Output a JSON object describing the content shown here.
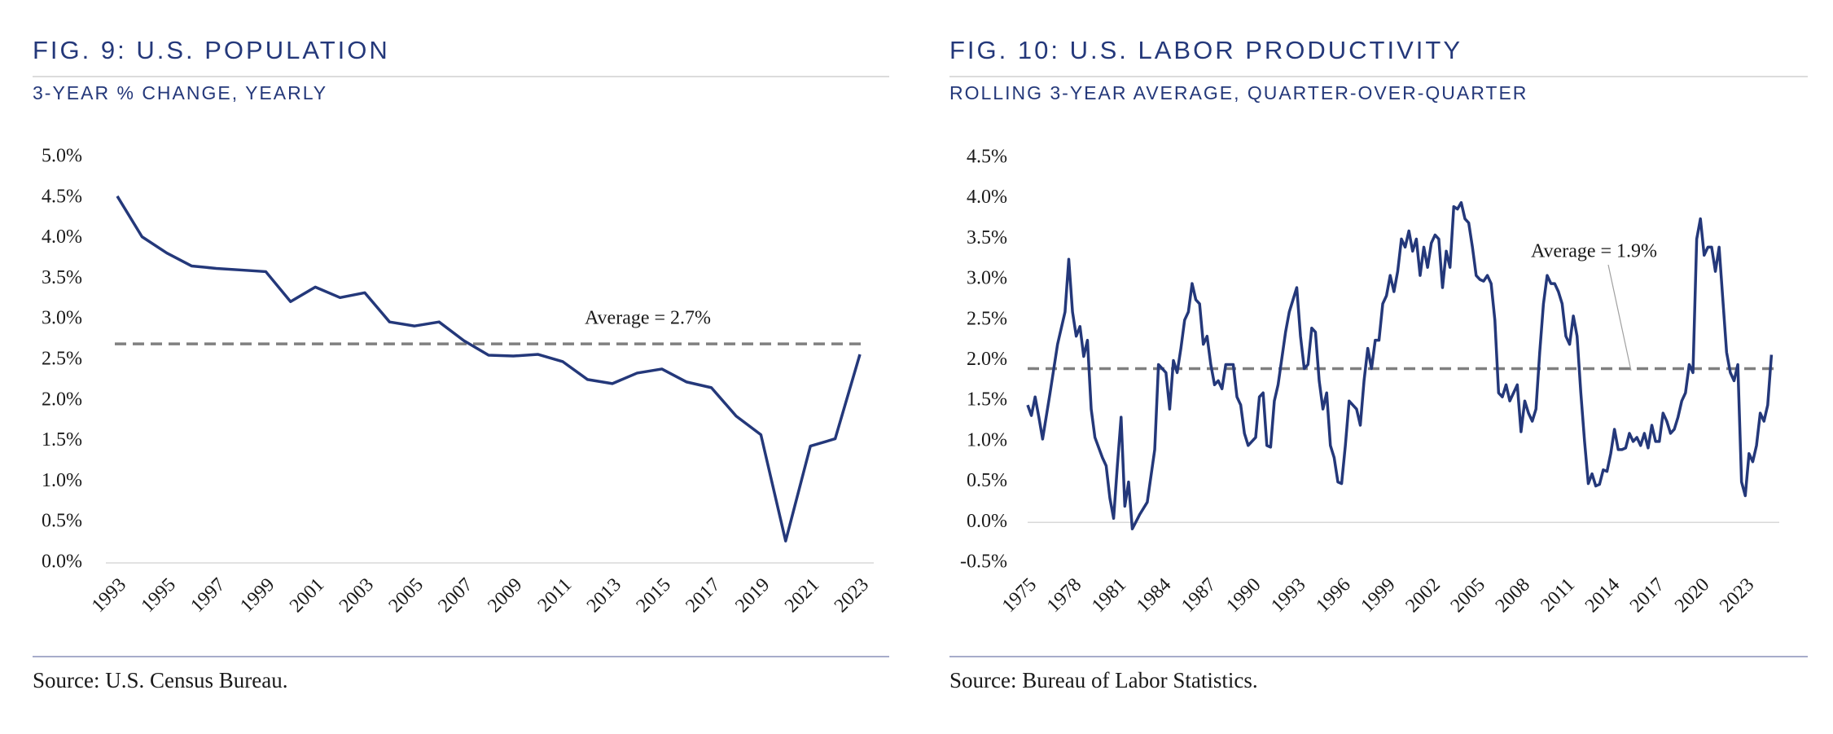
{
  "chart_data": [
    {
      "type": "line",
      "title": "FIG. 9: U.S. POPULATION",
      "subtitle": "3-YEAR % CHANGE, YEARLY",
      "source": "Source: U.S. Census Bureau.",
      "color": "#24387a",
      "x": [
        1993,
        1994,
        1995,
        1996,
        1997,
        1998,
        1999,
        2000,
        2001,
        2002,
        2003,
        2004,
        2005,
        2006,
        2007,
        2008,
        2009,
        2010,
        2011,
        2012,
        2013,
        2014,
        2015,
        2016,
        2017,
        2018,
        2019,
        2020,
        2021,
        2022,
        2023
      ],
      "values": [
        4.52,
        4.02,
        3.82,
        3.66,
        3.63,
        3.61,
        3.59,
        3.22,
        3.4,
        3.27,
        3.33,
        2.97,
        2.92,
        2.97,
        2.74,
        2.56,
        2.55,
        2.57,
        2.48,
        2.26,
        2.21,
        2.34,
        2.39,
        2.23,
        2.16,
        1.81,
        1.58,
        0.27,
        1.44,
        1.53,
        2.57
      ],
      "xlim": [
        1993,
        2023
      ],
      "xticks": [
        1993,
        1995,
        1997,
        1999,
        2001,
        2003,
        2005,
        2007,
        2009,
        2011,
        2013,
        2015,
        2017,
        2019,
        2021,
        2023
      ],
      "ylim": [
        0,
        5
      ],
      "yticks": [
        {
          "value": 0,
          "label": "0.0%"
        },
        {
          "value": 0.5,
          "label": "0.5%"
        },
        {
          "value": 1,
          "label": "1.0%"
        },
        {
          "value": 1.5,
          "label": "1.5%"
        },
        {
          "value": 2,
          "label": "2.0%"
        },
        {
          "value": 2.5,
          "label": "2.5%"
        },
        {
          "value": 3,
          "label": "3.0%"
        },
        {
          "value": 3.5,
          "label": "3.5%"
        },
        {
          "value": 4,
          "label": "4.0%"
        },
        {
          "value": 4.5,
          "label": "4.5%"
        },
        {
          "value": 5,
          "label": "5.0%"
        }
      ],
      "average": {
        "value": 2.7,
        "label": "Average = 2.7%"
      }
    },
    {
      "type": "line",
      "title": "FIG. 10: U.S. LABOR PRODUCTIVITY",
      "subtitle": "ROLLING 3-YEAR AVERAGE, QUARTER-OVER-QUARTER",
      "source": "Source: Bureau of Labor Statistics.",
      "color": "#24387a",
      "x": [
        1975,
        1975.25,
        1975.5,
        1975.75,
        1976,
        1976.5,
        1977,
        1977.5,
        1977.75,
        1978,
        1978.25,
        1978.5,
        1978.75,
        1979,
        1979.25,
        1979.5,
        1980,
        1980.25,
        1980.5,
        1980.75,
        1981,
        1981.25,
        1981.5,
        1981.75,
        1982,
        1982.5,
        1983,
        1983.5,
        1983.75,
        1984.25,
        1984.5,
        1984.75,
        1985,
        1985.25,
        1985.5,
        1985.75,
        1986,
        1986.25,
        1986.5,
        1986.75,
        1987,
        1987.25,
        1987.5,
        1987.75,
        1988,
        1988.25,
        1988.75,
        1989,
        1989.25,
        1989.5,
        1989.75,
        1990.25,
        1990.5,
        1990.75,
        1991,
        1991.25,
        1991.5,
        1991.75,
        1992.25,
        1992.5,
        1992.75,
        1993,
        1993.25,
        1993.5,
        1993.75,
        1994,
        1994.25,
        1994.5,
        1994.75,
        1995,
        1995.25,
        1995.5,
        1995.75,
        1996,
        1996.25,
        1996.5,
        1996.75,
        1997,
        1997.25,
        1997.5,
        1997.75,
        1998,
        1998.25,
        1998.5,
        1998.75,
        1999,
        1999.25,
        1999.5,
        1999.75,
        2000,
        2000.25,
        2000.5,
        2000.75,
        2001,
        2001.25,
        2001.5,
        2001.75,
        2002,
        2002.25,
        2002.5,
        2002.75,
        2003,
        2003.25,
        2003.5,
        2003.75,
        2004,
        2004.25,
        2004.5,
        2004.75,
        2005,
        2005.25,
        2005.5,
        2005.75,
        2006,
        2006.25,
        2006.5,
        2006.75,
        2007,
        2007.25,
        2007.5,
        2007.75,
        2008,
        2008.25,
        2008.5,
        2008.75,
        2009,
        2009.25,
        2009.5,
        2009.75,
        2010,
        2010.25,
        2010.5,
        2010.75,
        2011,
        2011.25,
        2011.5,
        2011.75,
        2012,
        2012.25,
        2012.5,
        2012.75,
        2013,
        2013.25,
        2013.5,
        2013.75,
        2014,
        2014.25,
        2014.5,
        2014.75,
        2015,
        2015.25,
        2015.5,
        2015.75,
        2016,
        2016.25,
        2016.5,
        2016.75,
        2017,
        2017.25,
        2017.5,
        2017.75,
        2018,
        2018.25,
        2018.5,
        2018.75,
        2019,
        2019.25,
        2019.5,
        2019.75,
        2020,
        2020.25,
        2020.5,
        2020.75,
        2021,
        2021.25,
        2021.5,
        2021.75,
        2022,
        2022.25,
        2022.5,
        2022.75,
        2023,
        2023.25,
        2023.5,
        2023.75,
        2024,
        2024.25,
        2024.5,
        2024.75
      ],
      "values": [
        1.45,
        1.32,
        1.55,
        1.3,
        1.03,
        1.6,
        2.2,
        2.6,
        3.25,
        2.6,
        2.3,
        2.42,
        2.05,
        2.25,
        1.4,
        1.05,
        0.8,
        0.7,
        0.3,
        0.05,
        0.7,
        1.3,
        0.2,
        0.5,
        -0.08,
        0.1,
        0.25,
        0.9,
        1.95,
        1.85,
        1.4,
        2.0,
        1.85,
        2.15,
        2.5,
        2.6,
        2.95,
        2.75,
        2.7,
        2.2,
        2.3,
        1.95,
        1.7,
        1.75,
        1.65,
        1.95,
        1.95,
        1.55,
        1.45,
        1.1,
        0.95,
        1.05,
        1.55,
        1.6,
        0.95,
        0.93,
        1.5,
        1.7,
        2.35,
        2.6,
        2.75,
        2.9,
        2.3,
        1.9,
        1.95,
        2.4,
        2.35,
        1.75,
        1.4,
        1.6,
        0.95,
        0.8,
        0.5,
        0.48,
        0.95,
        1.5,
        1.45,
        1.4,
        1.2,
        1.75,
        2.15,
        1.9,
        2.25,
        2.25,
        2.7,
        2.8,
        3.05,
        2.85,
        3.1,
        3.5,
        3.4,
        3.6,
        3.35,
        3.5,
        3.05,
        3.4,
        3.15,
        3.45,
        3.55,
        3.5,
        2.9,
        3.35,
        3.15,
        3.9,
        3.87,
        3.95,
        3.75,
        3.7,
        3.4,
        3.05,
        3.0,
        2.98,
        3.05,
        2.95,
        2.5,
        1.6,
        1.55,
        1.7,
        1.5,
        1.6,
        1.7,
        1.12,
        1.5,
        1.35,
        1.25,
        1.4,
        2.1,
        2.7,
        3.05,
        2.95,
        2.95,
        2.85,
        2.7,
        2.3,
        2.2,
        2.55,
        2.3,
        1.6,
        1.0,
        0.48,
        0.6,
        0.45,
        0.47,
        0.65,
        0.63,
        0.85,
        1.15,
        0.9,
        0.9,
        0.92,
        1.1,
        1.0,
        1.05,
        0.95,
        1.1,
        0.92,
        1.2,
        1.0,
        1.0,
        1.35,
        1.25,
        1.1,
        1.15,
        1.3,
        1.5,
        1.6,
        1.95,
        1.85,
        3.5,
        3.75,
        3.3,
        3.4,
        3.4,
        3.1,
        3.4,
        2.75,
        2.1,
        1.85,
        1.75,
        1.95,
        0.5,
        0.33,
        0.85,
        0.75,
        0.95,
        1.35,
        1.25,
        1.45,
        2.07
      ],
      "xlim": [
        1975,
        2025
      ],
      "xticks": [
        1975,
        1978,
        1981,
        1984,
        1987,
        1990,
        1993,
        1996,
        1999,
        2002,
        2005,
        2008,
        2011,
        2014,
        2017,
        2020,
        2023
      ],
      "ylim": [
        -0.5,
        4.5
      ],
      "yticks": [
        {
          "value": -0.5,
          "label": "-0.5%"
        },
        {
          "value": 0,
          "label": "0.0%"
        },
        {
          "value": 0.5,
          "label": "0.5%"
        },
        {
          "value": 1,
          "label": "1.0%"
        },
        {
          "value": 1.5,
          "label": "1.5%"
        },
        {
          "value": 2,
          "label": "2.0%"
        },
        {
          "value": 2.5,
          "label": "2.5%"
        },
        {
          "value": 3,
          "label": "3.0%"
        },
        {
          "value": 3.5,
          "label": "3.5%"
        },
        {
          "value": 4,
          "label": "4.0%"
        },
        {
          "value": 4.5,
          "label": "4.5%"
        }
      ],
      "average": {
        "value": 1.9,
        "label": "Average = 1.9%"
      }
    }
  ]
}
